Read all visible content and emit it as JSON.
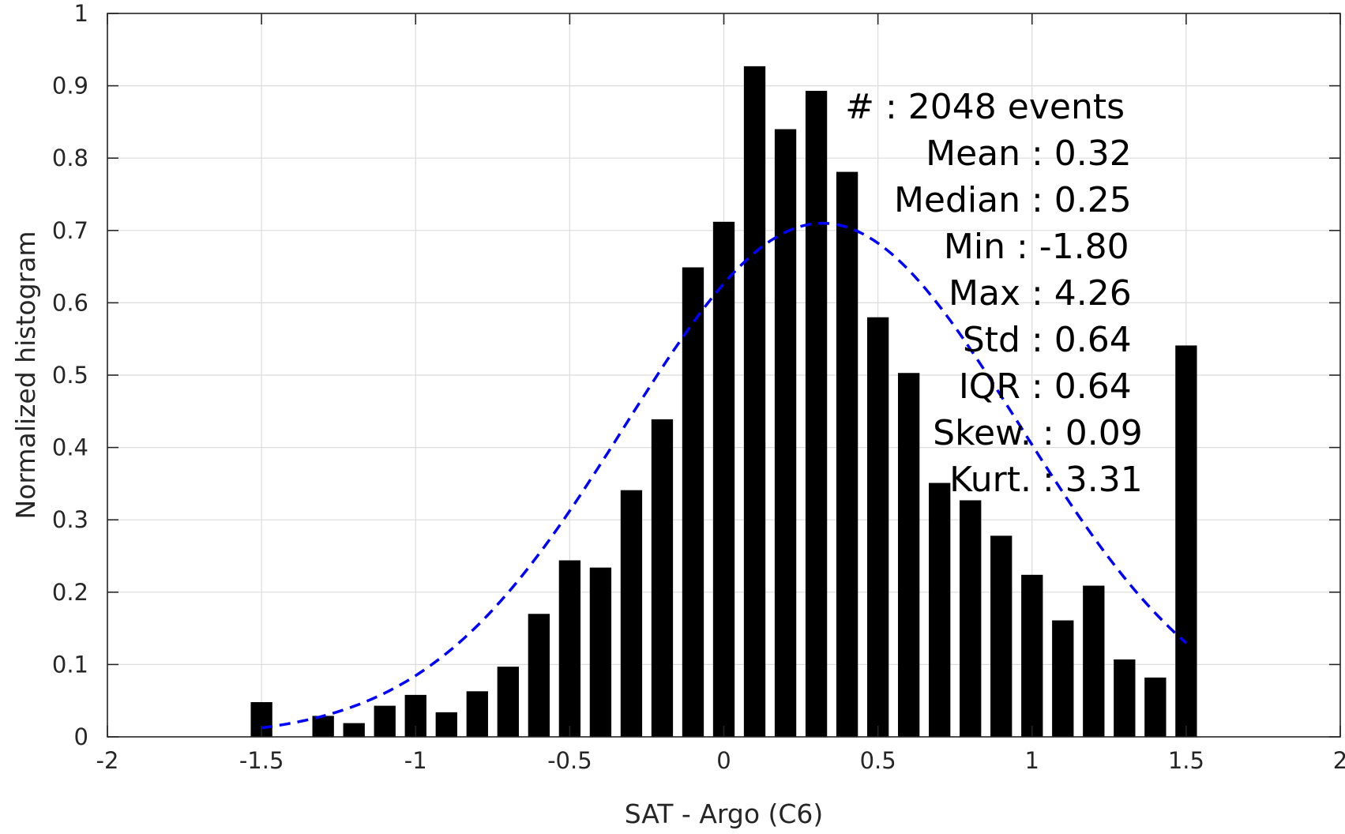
{
  "chart_data": {
    "type": "bar",
    "xlabel": "SAT - Argo (C6)",
    "ylabel": "Normalized histogram",
    "xlim": [
      -2,
      2
    ],
    "ylim": [
      0,
      1
    ],
    "grid": true,
    "xticks": [
      -2,
      -1.5,
      -1,
      -0.5,
      0,
      0.5,
      1,
      1.5,
      2
    ],
    "xtick_labels": [
      "-2",
      "-1.5",
      "-1",
      "-0.5",
      "0",
      "0.5",
      "1",
      "1.5",
      "2"
    ],
    "yticks": [
      0,
      0.1,
      0.2,
      0.3,
      0.4,
      0.5,
      0.6,
      0.7,
      0.8,
      0.9,
      1
    ],
    "ytick_labels": [
      "0",
      "0.1",
      "0.2",
      "0.3",
      "0.4",
      "0.5",
      "0.6",
      "0.7",
      "0.8",
      "0.9",
      "1"
    ],
    "bar_width": 0.07,
    "bar_color": "#000000",
    "bars": {
      "x": [
        -1.5,
        -1.3,
        -1.2,
        -1.1,
        -1.0,
        -0.9,
        -0.8,
        -0.7,
        -0.6,
        -0.5,
        -0.4,
        -0.3,
        -0.2,
        -0.1,
        0.0,
        0.1,
        0.2,
        0.3,
        0.4,
        0.5,
        0.6,
        0.7,
        0.8,
        0.9,
        1.0,
        1.1,
        1.2,
        1.3,
        1.4,
        1.5
      ],
      "values": [
        0.048,
        0.029,
        0.019,
        0.043,
        0.058,
        0.034,
        0.063,
        0.097,
        0.17,
        0.244,
        0.234,
        0.341,
        0.439,
        0.649,
        0.712,
        0.927,
        0.84,
        0.893,
        0.781,
        0.58,
        0.503,
        0.351,
        0.327,
        0.278,
        0.224,
        0.161,
        0.209,
        0.107,
        0.082,
        0.541
      ]
    },
    "fit_curve": {
      "style": "dashed",
      "color": "#0000ff",
      "mean": 0.32,
      "std": 0.64,
      "peak": 0.71,
      "x_range": [
        -1.5,
        1.5
      ]
    },
    "stats": [
      {
        "label": "#",
        "value": ": 2048 events"
      },
      {
        "label": "Mean",
        "value": ": 0.32"
      },
      {
        "label": "Median",
        "value": ": 0.25"
      },
      {
        "label": "Min",
        "value": ": -1.80"
      },
      {
        "label": "Max",
        "value": ": 4.26"
      },
      {
        "label": "Std",
        "value": ": 0.64"
      },
      {
        "label": "IQR",
        "value": ": 0.64"
      },
      {
        "label": "Skew.",
        "value": ": 0.09"
      },
      {
        "label": "Kurt.",
        "value": ": 3.31"
      }
    ]
  }
}
